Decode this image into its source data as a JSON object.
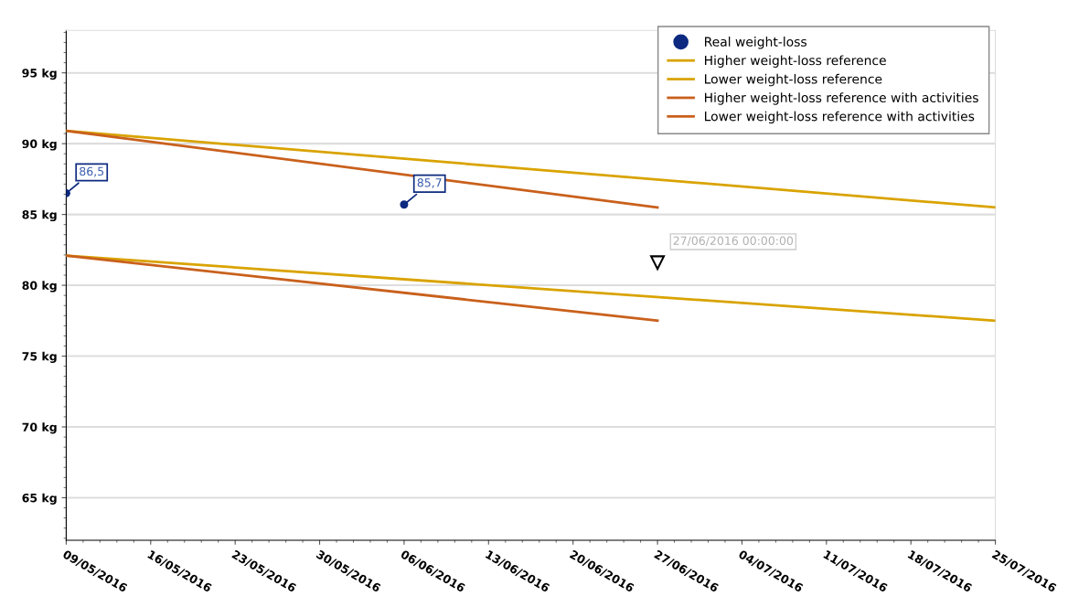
{
  "chart_data": {
    "type": "line",
    "xlim": [
      "2016-05-09",
      "2016-07-25"
    ],
    "xticks": [
      {
        "value": "2016-05-09",
        "label": "09/05/2016"
      },
      {
        "value": "2016-05-16",
        "label": "16/05/2016"
      },
      {
        "value": "2016-05-23",
        "label": "23/05/2016"
      },
      {
        "value": "2016-05-30",
        "label": "30/05/2016"
      },
      {
        "value": "2016-06-06",
        "label": "06/06/2016"
      },
      {
        "value": "2016-06-13",
        "label": "13/06/2016"
      },
      {
        "value": "2016-06-20",
        "label": "20/06/2016"
      },
      {
        "value": "2016-06-27",
        "label": "27/06/2016"
      },
      {
        "value": "2016-07-04",
        "label": "04/07/2016"
      },
      {
        "value": "2016-07-11",
        "label": "11/07/2016"
      },
      {
        "value": "2016-07-18",
        "label": "18/07/2016"
      },
      {
        "value": "2016-07-25",
        "label": "25/07/2016"
      }
    ],
    "ylim": [
      62,
      98
    ],
    "yticks": [
      {
        "value": 65,
        "label": "65 kg"
      },
      {
        "value": 70,
        "label": "70 kg"
      },
      {
        "value": 75,
        "label": "75 kg"
      },
      {
        "value": 80,
        "label": "80 kg"
      },
      {
        "value": 85,
        "label": "85 kg"
      },
      {
        "value": 90,
        "label": "90 kg"
      },
      {
        "value": 95,
        "label": "95 kg"
      }
    ],
    "grid": "y",
    "legend": "top right",
    "series": [
      {
        "name": "Real weight-loss",
        "type": "scatter",
        "marker": "circle",
        "color": "#0d2a80",
        "x": [
          "2016-05-09",
          "2016-06-06"
        ],
        "values": [
          86.5,
          85.7
        ],
        "value_labels": [
          "86,5",
          "85,7"
        ]
      },
      {
        "name": "Higher weight-loss reference",
        "color": "#d9a300",
        "x": [
          "2016-05-09",
          "2016-07-25"
        ],
        "values": [
          90.9,
          85.5
        ]
      },
      {
        "name": "Lower weight-loss reference",
        "color": "#d9a300",
        "x": [
          "2016-05-09",
          "2016-07-25"
        ],
        "values": [
          82.1,
          77.5
        ]
      },
      {
        "name": "Higher weight-loss reference with activities",
        "color": "#c9601c",
        "x": [
          "2016-05-09",
          "2016-06-27"
        ],
        "values": [
          90.9,
          85.5
        ]
      },
      {
        "name": "Lower weight-loss reference with activities",
        "color": "#c9601c",
        "x": [
          "2016-05-09",
          "2016-06-27"
        ],
        "values": [
          82.1,
          77.5
        ]
      }
    ],
    "annotations": [
      {
        "text": "27/06/2016 00:00:00",
        "x": "2016-06-27",
        "y": 81.6
      }
    ]
  }
}
